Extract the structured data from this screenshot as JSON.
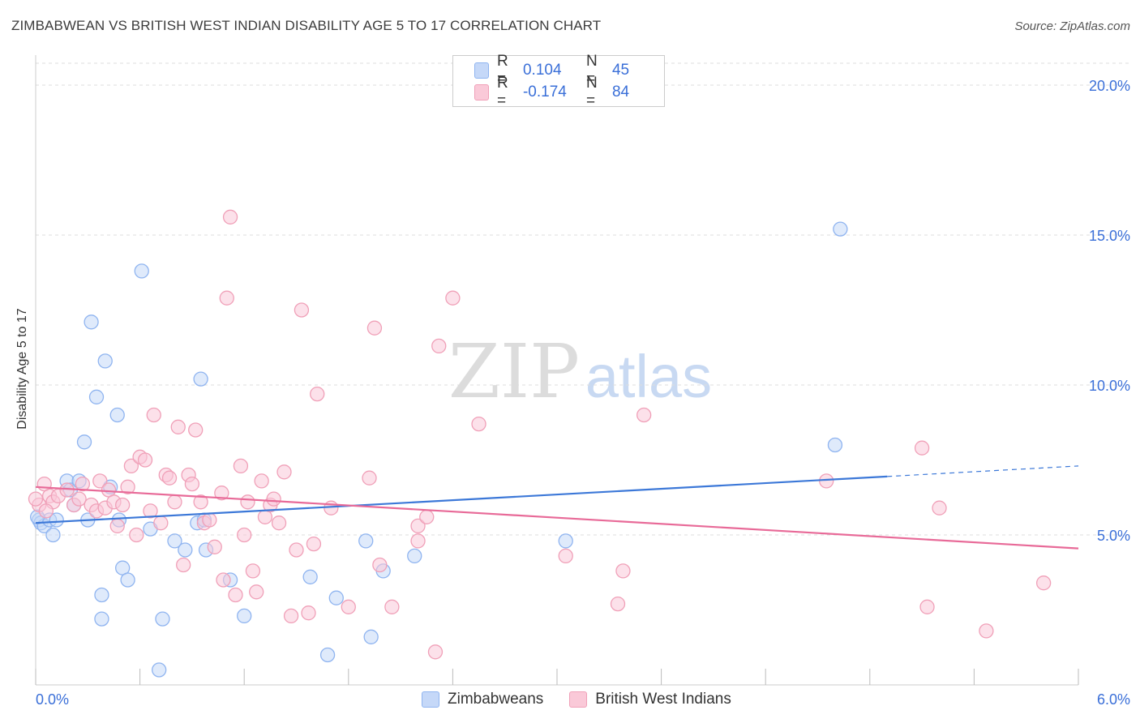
{
  "title": "ZIMBABWEAN VS BRITISH WEST INDIAN DISABILITY AGE 5 TO 17 CORRELATION CHART",
  "source": "Source: ZipAtlas.com",
  "watermark": {
    "zip": "ZIP",
    "atlas": "atlas"
  },
  "legend": {
    "rows": [
      {
        "r_label": "R =",
        "r_value": "0.104",
        "n_label": "N =",
        "n_value": "45",
        "color": "#8fb4f0",
        "fill": "#c5d8f8"
      },
      {
        "r_label": "R =",
        "r_value": "-0.174",
        "n_label": "N =",
        "n_value": "84",
        "color": "#f0a0b8",
        "fill": "#fac9d8"
      }
    ]
  },
  "bottom_legend": {
    "items": [
      "Zimbabweans",
      "British West Indians"
    ]
  },
  "chart_data": {
    "type": "scatter",
    "title": "ZIMBABWEAN VS BRITISH WEST INDIAN DISABILITY AGE 5 TO 17 CORRELATION CHART",
    "xlabel": "",
    "ylabel": "Disability Age 5 to 17",
    "xlim": [
      0,
      6
    ],
    "ylim": [
      0,
      21
    ],
    "x_tick_labels": [
      "0.0%",
      "6.0%"
    ],
    "y_ticks": [
      5,
      10,
      15,
      20
    ],
    "y_tick_labels": [
      "5.0%",
      "10.0%",
      "15.0%",
      "20.0%"
    ],
    "grid": "horizontal dashed",
    "legend_position": "top-center",
    "series": [
      {
        "name": "Zimbabweans",
        "color": "#3c78d8",
        "marker_fill": "#c5d8f8",
        "marker_stroke": "#8fb4f0",
        "trend": {
          "x": [
            0,
            4.9
          ],
          "y": [
            5.4,
            6.95
          ],
          "dashed_extension": {
            "x": [
              4.9,
              6.0
            ],
            "y": [
              6.95,
              7.3
            ]
          }
        },
        "points": [
          [
            0.02,
            5.5
          ],
          [
            0.03,
            5.4
          ],
          [
            0.05,
            5.3
          ],
          [
            0.08,
            5.5
          ],
          [
            0.1,
            5.0
          ],
          [
            0.12,
            5.5
          ],
          [
            0.18,
            6.8
          ],
          [
            0.2,
            6.5
          ],
          [
            0.22,
            6.0
          ],
          [
            0.25,
            6.8
          ],
          [
            0.28,
            8.1
          ],
          [
            0.3,
            5.5
          ],
          [
            0.32,
            12.1
          ],
          [
            0.35,
            9.6
          ],
          [
            0.38,
            3.0
          ],
          [
            0.38,
            2.2
          ],
          [
            0.4,
            10.8
          ],
          [
            0.43,
            6.6
          ],
          [
            0.47,
            9.0
          ],
          [
            0.48,
            5.5
          ],
          [
            0.5,
            3.9
          ],
          [
            0.53,
            3.5
          ],
          [
            0.61,
            13.8
          ],
          [
            0.66,
            5.2
          ],
          [
            0.71,
            0.5
          ],
          [
            0.73,
            2.2
          ],
          [
            0.8,
            4.8
          ],
          [
            0.86,
            4.5
          ],
          [
            0.93,
            5.4
          ],
          [
            0.95,
            10.2
          ],
          [
            0.97,
            5.5
          ],
          [
            0.98,
            4.5
          ],
          [
            1.12,
            3.5
          ],
          [
            1.2,
            2.3
          ],
          [
            1.58,
            3.6
          ],
          [
            1.68,
            1.0
          ],
          [
            1.73,
            2.9
          ],
          [
            1.9,
            4.8
          ],
          [
            1.93,
            1.6
          ],
          [
            2.0,
            3.8
          ],
          [
            2.18,
            4.3
          ],
          [
            3.05,
            4.8
          ],
          [
            4.6,
            8.0
          ],
          [
            4.63,
            15.2
          ],
          [
            0.01,
            5.6
          ]
        ]
      },
      {
        "name": "British West Indians",
        "color": "#e86a98",
        "marker_fill": "#fac9d8",
        "marker_stroke": "#f0a0b8",
        "trend": {
          "x": [
            0,
            6.0
          ],
          "y": [
            6.6,
            4.55
          ]
        },
        "points": [
          [
            0.02,
            6.0
          ],
          [
            0.05,
            6.7
          ],
          [
            0.08,
            6.3
          ],
          [
            0.1,
            6.1
          ],
          [
            0.13,
            6.3
          ],
          [
            0.18,
            6.5
          ],
          [
            0.22,
            6.0
          ],
          [
            0.25,
            6.2
          ],
          [
            0.27,
            6.7
          ],
          [
            0.32,
            6.0
          ],
          [
            0.35,
            5.8
          ],
          [
            0.37,
            6.8
          ],
          [
            0.4,
            5.9
          ],
          [
            0.42,
            6.5
          ],
          [
            0.45,
            6.1
          ],
          [
            0.47,
            5.3
          ],
          [
            0.5,
            6.0
          ],
          [
            0.53,
            6.6
          ],
          [
            0.55,
            7.3
          ],
          [
            0.58,
            5.0
          ],
          [
            0.6,
            7.6
          ],
          [
            0.63,
            7.5
          ],
          [
            0.66,
            5.8
          ],
          [
            0.68,
            9.0
          ],
          [
            0.72,
            5.4
          ],
          [
            0.75,
            7.0
          ],
          [
            0.77,
            6.9
          ],
          [
            0.8,
            6.1
          ],
          [
            0.82,
            8.6
          ],
          [
            0.85,
            4.0
          ],
          [
            0.88,
            7.0
          ],
          [
            0.9,
            6.7
          ],
          [
            0.92,
            8.5
          ],
          [
            0.95,
            6.1
          ],
          [
            0.97,
            5.4
          ],
          [
            1.0,
            5.5
          ],
          [
            1.03,
            4.6
          ],
          [
            1.07,
            6.4
          ],
          [
            1.08,
            3.5
          ],
          [
            1.1,
            12.9
          ],
          [
            1.12,
            15.6
          ],
          [
            1.15,
            3.0
          ],
          [
            1.18,
            7.3
          ],
          [
            1.2,
            5.0
          ],
          [
            1.22,
            6.1
          ],
          [
            1.25,
            3.8
          ],
          [
            1.27,
            3.1
          ],
          [
            1.3,
            6.8
          ],
          [
            1.32,
            5.6
          ],
          [
            1.35,
            6.0
          ],
          [
            1.37,
            6.2
          ],
          [
            1.4,
            5.4
          ],
          [
            1.43,
            7.1
          ],
          [
            1.47,
            2.3
          ],
          [
            1.5,
            4.5
          ],
          [
            1.53,
            12.5
          ],
          [
            1.57,
            2.4
          ],
          [
            1.6,
            4.7
          ],
          [
            1.62,
            9.7
          ],
          [
            1.7,
            5.9
          ],
          [
            1.8,
            2.6
          ],
          [
            1.92,
            6.9
          ],
          [
            1.95,
            11.9
          ],
          [
            1.98,
            4.0
          ],
          [
            2.05,
            2.6
          ],
          [
            2.2,
            5.3
          ],
          [
            2.25,
            5.6
          ],
          [
            2.3,
            1.1
          ],
          [
            2.32,
            11.3
          ],
          [
            2.4,
            12.9
          ],
          [
            2.55,
            8.7
          ],
          [
            3.05,
            4.3
          ],
          [
            3.35,
            2.7
          ],
          [
            3.38,
            3.8
          ],
          [
            3.5,
            9.0
          ],
          [
            4.55,
            6.8
          ],
          [
            5.1,
            7.9
          ],
          [
            5.13,
            2.6
          ],
          [
            5.2,
            5.9
          ],
          [
            5.47,
            1.8
          ],
          [
            5.8,
            3.4
          ],
          [
            0.0,
            6.2
          ],
          [
            0.06,
            5.8
          ],
          [
            2.2,
            4.8
          ]
        ]
      }
    ]
  }
}
